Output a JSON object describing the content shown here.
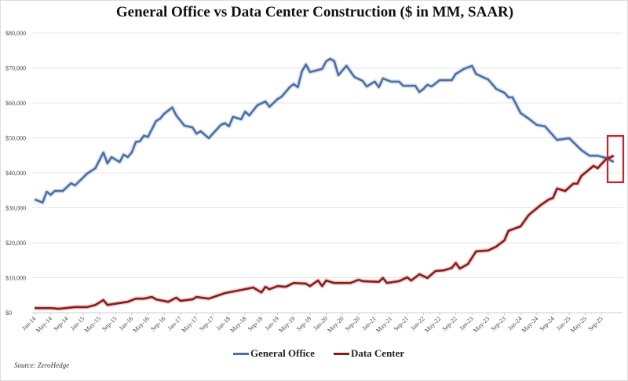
{
  "chart_data": {
    "type": "line",
    "title": "General Office vs Data Center Construction ($ in MM, SAAR)",
    "xlabel": "",
    "ylabel": "",
    "ylim": [
      0,
      80000
    ],
    "yticks": [
      "$0",
      "$10,000",
      "$20,000",
      "$30,000",
      "$40,000",
      "$50,000",
      "$60,000",
      "$70,000",
      "$80,000"
    ],
    "xticks": [
      "Jan-14",
      "May-14",
      "Sep-14",
      "Jan-15",
      "May-15",
      "Sep-15",
      "Jan-16",
      "May-16",
      "Sep-16",
      "Jan-17",
      "May-17",
      "Sep-17",
      "Jan-18",
      "May-18",
      "Sep-18",
      "Jan-19",
      "May-19",
      "Sep-19",
      "Jan-20",
      "May-20",
      "Sep-20",
      "Jan-21",
      "May-21",
      "Sep-21",
      "Jan-22",
      "May-22",
      "Sep-22",
      "Jan-23",
      "May-23",
      "Sep-23",
      "Jan-24",
      "May-24",
      "Sep-24",
      "Jan-25",
      "May-25",
      "Sep-25"
    ],
    "grid": true,
    "legend_position": "bottom",
    "series": [
      {
        "name": "General Office",
        "color": "#4a6fa5",
        "points": [
          [
            "2014-01",
            32400
          ],
          [
            "2014-03",
            31500
          ],
          [
            "2014-04",
            34600
          ],
          [
            "2014-05",
            33700
          ],
          [
            "2014-06",
            34800
          ],
          [
            "2014-08",
            34800
          ],
          [
            "2014-10",
            37000
          ],
          [
            "2014-11",
            36400
          ],
          [
            "2015-02",
            39800
          ],
          [
            "2015-04",
            41300
          ],
          [
            "2015-06",
            45800
          ],
          [
            "2015-07",
            42700
          ],
          [
            "2015-08",
            44500
          ],
          [
            "2015-10",
            43100
          ],
          [
            "2015-11",
            45200
          ],
          [
            "2015-12",
            44500
          ],
          [
            "2016-01",
            45800
          ],
          [
            "2016-02",
            48800
          ],
          [
            "2016-03",
            49000
          ],
          [
            "2016-04",
            50600
          ],
          [
            "2016-05",
            50300
          ],
          [
            "2016-07",
            54800
          ],
          [
            "2016-08",
            55500
          ],
          [
            "2016-09",
            56900
          ],
          [
            "2016-11",
            58700
          ],
          [
            "2016-12",
            56400
          ],
          [
            "2017-02",
            53500
          ],
          [
            "2017-04",
            53000
          ],
          [
            "2017-05",
            51200
          ],
          [
            "2017-06",
            51900
          ],
          [
            "2017-08",
            49900
          ],
          [
            "2017-11",
            53700
          ],
          [
            "2017-12",
            54200
          ],
          [
            "2018-01",
            53300
          ],
          [
            "2018-02",
            56000
          ],
          [
            "2018-04",
            55300
          ],
          [
            "2018-05",
            57500
          ],
          [
            "2018-06",
            56400
          ],
          [
            "2018-08",
            59300
          ],
          [
            "2018-10",
            60400
          ],
          [
            "2018-11",
            58900
          ],
          [
            "2019-01",
            61100
          ],
          [
            "2019-02",
            61800
          ],
          [
            "2019-04",
            64500
          ],
          [
            "2019-05",
            65400
          ],
          [
            "2019-06",
            64500
          ],
          [
            "2019-07",
            69000
          ],
          [
            "2019-08",
            71000
          ],
          [
            "2019-09",
            68800
          ],
          [
            "2019-12",
            69700
          ],
          [
            "2020-01",
            71900
          ],
          [
            "2020-02",
            72600
          ],
          [
            "2020-03",
            71900
          ],
          [
            "2020-04",
            67900
          ],
          [
            "2020-06",
            70600
          ],
          [
            "2020-08",
            67400
          ],
          [
            "2020-10",
            66300
          ],
          [
            "2020-11",
            64700
          ],
          [
            "2021-01",
            66100
          ],
          [
            "2021-02",
            64500
          ],
          [
            "2021-03",
            67000
          ],
          [
            "2021-05",
            66100
          ],
          [
            "2021-07",
            66100
          ],
          [
            "2021-08",
            64900
          ],
          [
            "2021-11",
            64900
          ],
          [
            "2021-12",
            63100
          ],
          [
            "2022-01",
            64000
          ],
          [
            "2022-02",
            65200
          ],
          [
            "2022-03",
            64700
          ],
          [
            "2022-05",
            66500
          ],
          [
            "2022-08",
            66500
          ],
          [
            "2022-09",
            68300
          ],
          [
            "2022-11",
            69700
          ],
          [
            "2023-01",
            70600
          ],
          [
            "2023-02",
            68300
          ],
          [
            "2023-04",
            67200
          ],
          [
            "2023-05",
            66700
          ],
          [
            "2023-07",
            64000
          ],
          [
            "2023-09",
            62900
          ],
          [
            "2023-10",
            61600
          ],
          [
            "2023-11",
            61600
          ],
          [
            "2024-01",
            57100
          ],
          [
            "2024-03",
            55500
          ],
          [
            "2024-05",
            53700
          ],
          [
            "2024-07",
            53300
          ],
          [
            "2024-10",
            49400
          ],
          [
            "2025-01",
            49900
          ],
          [
            "2025-04",
            46500
          ],
          [
            "2025-06",
            44900
          ],
          [
            "2025-08",
            44900
          ],
          [
            "2025-10",
            44300
          ],
          [
            "2025-12",
            43100
          ]
        ]
      },
      {
        "name": "Data Center",
        "color": "#8b1a1a",
        "points": [
          [
            "2014-01",
            1300
          ],
          [
            "2014-05",
            1300
          ],
          [
            "2014-07",
            1100
          ],
          [
            "2014-11",
            1600
          ],
          [
            "2015-02",
            1600
          ],
          [
            "2015-04",
            2200
          ],
          [
            "2015-06",
            3600
          ],
          [
            "2015-07",
            2200
          ],
          [
            "2015-12",
            3100
          ],
          [
            "2016-02",
            4000
          ],
          [
            "2016-04",
            4000
          ],
          [
            "2016-06",
            4500
          ],
          [
            "2016-07",
            3800
          ],
          [
            "2016-10",
            3100
          ],
          [
            "2016-12",
            4300
          ],
          [
            "2017-01",
            3400
          ],
          [
            "2017-04",
            3800
          ],
          [
            "2017-05",
            4500
          ],
          [
            "2017-08",
            4000
          ],
          [
            "2017-12",
            5600
          ],
          [
            "2018-04",
            6500
          ],
          [
            "2018-07",
            7200
          ],
          [
            "2018-09",
            5800
          ],
          [
            "2018-10",
            7400
          ],
          [
            "2018-11",
            6700
          ],
          [
            "2019-01",
            7600
          ],
          [
            "2019-03",
            7400
          ],
          [
            "2019-05",
            8500
          ],
          [
            "2019-08",
            8300
          ],
          [
            "2019-09",
            7600
          ],
          [
            "2019-11",
            9200
          ],
          [
            "2019-12",
            7600
          ],
          [
            "2020-01",
            9200
          ],
          [
            "2020-03",
            8500
          ],
          [
            "2020-07",
            8500
          ],
          [
            "2020-09",
            9400
          ],
          [
            "2020-10",
            9000
          ],
          [
            "2021-02",
            8800
          ],
          [
            "2021-03",
            9900
          ],
          [
            "2021-04",
            8500
          ],
          [
            "2021-07",
            9000
          ],
          [
            "2021-09",
            10100
          ],
          [
            "2021-10",
            9200
          ],
          [
            "2021-12",
            11000
          ],
          [
            "2022-02",
            9900
          ],
          [
            "2022-04",
            11900
          ],
          [
            "2022-06",
            12100
          ],
          [
            "2022-08",
            12800
          ],
          [
            "2022-09",
            14200
          ],
          [
            "2022-10",
            12600
          ],
          [
            "2022-12",
            13900
          ],
          [
            "2023-02",
            17500
          ],
          [
            "2023-05",
            17800
          ],
          [
            "2023-07",
            18900
          ],
          [
            "2023-09",
            20700
          ],
          [
            "2023-10",
            23400
          ],
          [
            "2024-01",
            24700
          ],
          [
            "2024-03",
            27900
          ],
          [
            "2024-06",
            30800
          ],
          [
            "2024-08",
            32400
          ],
          [
            "2024-09",
            32800
          ],
          [
            "2024-10",
            35500
          ],
          [
            "2024-12",
            34800
          ],
          [
            "2025-02",
            36900
          ],
          [
            "2025-03",
            36900
          ],
          [
            "2025-04",
            39100
          ],
          [
            "2025-07",
            42000
          ],
          [
            "2025-08",
            41300
          ],
          [
            "2025-10",
            43800
          ],
          [
            "2025-12",
            44900
          ]
        ]
      }
    ],
    "annotations": [
      {
        "type": "highlight-box",
        "color": "#c0272d",
        "around": "crossover at latest data point"
      }
    ]
  },
  "source": "Source: ZeroHedge"
}
